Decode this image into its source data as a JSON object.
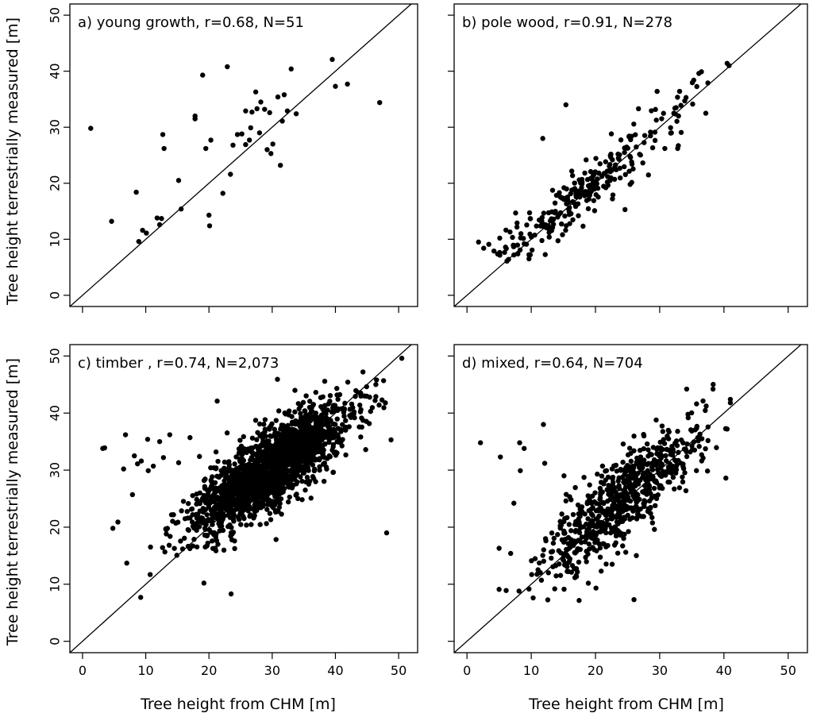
{
  "figure": {
    "ylabel": "Tree height terrestrially measured [m]",
    "xlabel": "Tree height from CHM [m]"
  },
  "chart_data": [
    {
      "type": "scatter",
      "id": "a",
      "title": "a) young growth, r=0.68, N=51",
      "xlabel": "Tree height from CHM [m]",
      "ylabel": "Tree height terrestrially measured [m]",
      "xlim": [
        -2,
        53
      ],
      "ylim": [
        -2,
        52
      ],
      "xticks": [
        0,
        10,
        20,
        30,
        40,
        50
      ],
      "yticks": [
        0,
        10,
        20,
        30,
        40,
        50
      ],
      "reference_line": "1:1",
      "points": [
        [
          1.3,
          29.8
        ],
        [
          4.6,
          13.2
        ],
        [
          8.5,
          18.4
        ],
        [
          8.9,
          9.6
        ],
        [
          9.5,
          11.6
        ],
        [
          10.1,
          11.1
        ],
        [
          11.8,
          13.8
        ],
        [
          12.2,
          12.6
        ],
        [
          12.5,
          13.7
        ],
        [
          12.7,
          28.7
        ],
        [
          12.9,
          26.2
        ],
        [
          15.2,
          20.5
        ],
        [
          15.6,
          15.4
        ],
        [
          17.8,
          32.0
        ],
        [
          17.8,
          31.5
        ],
        [
          19.0,
          39.3
        ],
        [
          19.5,
          26.2
        ],
        [
          20.0,
          14.3
        ],
        [
          20.1,
          12.4
        ],
        [
          20.3,
          27.7
        ],
        [
          22.2,
          18.2
        ],
        [
          22.9,
          40.8
        ],
        [
          23.4,
          21.6
        ],
        [
          23.8,
          26.8
        ],
        [
          24.5,
          28.7
        ],
        [
          25.2,
          28.8
        ],
        [
          25.8,
          26.9
        ],
        [
          25.8,
          32.9
        ],
        [
          26.4,
          27.7
        ],
        [
          26.6,
          29.9
        ],
        [
          26.8,
          32.7
        ],
        [
          27.4,
          36.3
        ],
        [
          27.6,
          33.3
        ],
        [
          28.0,
          29.0
        ],
        [
          28.2,
          34.5
        ],
        [
          28.8,
          33.2
        ],
        [
          29.2,
          26.0
        ],
        [
          29.6,
          32.6
        ],
        [
          29.8,
          25.3
        ],
        [
          30.1,
          27.0
        ],
        [
          30.9,
          35.4
        ],
        [
          31.3,
          23.2
        ],
        [
          31.6,
          31.1
        ],
        [
          31.9,
          35.8
        ],
        [
          32.4,
          32.9
        ],
        [
          33.0,
          40.4
        ],
        [
          33.8,
          32.4
        ],
        [
          39.5,
          42.1
        ],
        [
          40.0,
          37.3
        ],
        [
          41.9,
          37.7
        ],
        [
          47.0,
          34.4
        ]
      ]
    },
    {
      "type": "scatter",
      "id": "b",
      "title": "b) pole wood, r=0.91, N=278",
      "xlabel": "Tree height from CHM [m]",
      "ylabel": "Tree height terrestrially measured [m]",
      "xlim": [
        -2,
        53
      ],
      "ylim": [
        -2,
        52
      ],
      "xticks": [
        0,
        10,
        20,
        30,
        40,
        50
      ],
      "yticks": [
        0,
        10,
        20,
        30,
        40,
        50
      ],
      "reference_line": "1:1",
      "generator": {
        "type": "linear",
        "n": 278,
        "x_range": [
          2,
          41
        ],
        "x_center": 18,
        "x_sd": 7,
        "slope": 1.0,
        "intercept": 0.2,
        "noise_sd": 2.3,
        "seed": 278
      },
      "points": [
        [
          1.8,
          9.5
        ],
        [
          2.6,
          8.4
        ],
        [
          3.4,
          9.1
        ],
        [
          4.2,
          7.9
        ],
        [
          5.1,
          10.2
        ],
        [
          6.0,
          8.6
        ],
        [
          6.7,
          11.3
        ],
        [
          7.3,
          7.2
        ],
        [
          7.8,
          12.9
        ],
        [
          8.4,
          11.0
        ],
        [
          11.8,
          28.0
        ],
        [
          15.4,
          34.0
        ],
        [
          24.6,
          15.3
        ],
        [
          25.4,
          19.8
        ],
        [
          26.7,
          33.3
        ],
        [
          29.6,
          36.4
        ],
        [
          30.8,
          26.2
        ],
        [
          32.2,
          32.5
        ],
        [
          32.8,
          26.2
        ],
        [
          32.9,
          26.7
        ],
        [
          33.1,
          36.4
        ],
        [
          33.3,
          33.9
        ],
        [
          33.9,
          34.7
        ],
        [
          34.1,
          35.3
        ],
        [
          35.3,
          38.4
        ],
        [
          36.1,
          39.6
        ],
        [
          36.5,
          39.9
        ],
        [
          37.5,
          37.9
        ],
        [
          40.5,
          41.4
        ],
        [
          40.8,
          41.0
        ]
      ]
    },
    {
      "type": "scatter",
      "id": "c",
      "title": "c) timber , r=0.74, N=2,073",
      "xlabel": "Tree height from CHM [m]",
      "ylabel": "Tree height terrestrially measured [m]",
      "xlim": [
        -2,
        53
      ],
      "ylim": [
        -2,
        52
      ],
      "xticks": [
        0,
        10,
        20,
        30,
        40,
        50
      ],
      "yticks": [
        0,
        10,
        20,
        30,
        40,
        50
      ],
      "reference_line": "1:1",
      "generator": {
        "type": "linear",
        "n": 2073,
        "x_range": [
          10,
          48
        ],
        "x_center": 30,
        "x_sd": 6,
        "slope": 0.75,
        "intercept": 8,
        "noise_sd": 3.3,
        "seed": 2073
      },
      "points": [
        [
          3.2,
          33.8
        ],
        [
          3.5,
          33.9
        ],
        [
          4.8,
          19.8
        ],
        [
          5.6,
          20.9
        ],
        [
          6.5,
          30.2
        ],
        [
          6.8,
          36.2
        ],
        [
          7.0,
          13.7
        ],
        [
          7.9,
          25.7
        ],
        [
          8.2,
          32.5
        ],
        [
          8.7,
          31.1
        ],
        [
          9.2,
          7.7
        ],
        [
          9.3,
          31.6
        ],
        [
          10.3,
          35.4
        ],
        [
          10.4,
          29.9
        ],
        [
          10.7,
          11.7
        ],
        [
          11.2,
          30.7
        ],
        [
          12.2,
          35.0
        ],
        [
          12.8,
          32.2
        ],
        [
          13.8,
          36.2
        ],
        [
          15.2,
          31.3
        ],
        [
          17.0,
          35.7
        ],
        [
          18.5,
          32.4
        ],
        [
          19.2,
          10.2
        ],
        [
          21.3,
          42.1
        ],
        [
          23.5,
          8.3
        ],
        [
          44.0,
          43.5
        ],
        [
          46.5,
          45.8
        ],
        [
          48.1,
          19.0
        ],
        [
          48.8,
          35.3
        ],
        [
          50.5,
          49.6
        ]
      ]
    },
    {
      "type": "scatter",
      "id": "d",
      "title": "d) mixed, r=0.64, N=704",
      "xlabel": "Tree height from CHM [m]",
      "ylabel": "Tree height terrestrially measured [m]",
      "xlim": [
        -2,
        53
      ],
      "ylim": [
        -2,
        52
      ],
      "xticks": [
        0,
        10,
        20,
        30,
        40,
        50
      ],
      "yticks": [
        0,
        10,
        20,
        30,
        40,
        50
      ],
      "reference_line": "1:1",
      "generator": {
        "type": "linear",
        "n": 704,
        "x_range": [
          7,
          41
        ],
        "x_center": 24,
        "x_sd": 6,
        "slope": 0.95,
        "intercept": 2,
        "noise_sd": 3.6,
        "seed": 704
      },
      "points": [
        [
          2.1,
          34.8
        ],
        [
          5.0,
          16.3
        ],
        [
          5.2,
          32.3
        ],
        [
          5.0,
          9.1
        ],
        [
          6.1,
          8.9
        ],
        [
          6.8,
          15.4
        ],
        [
          7.3,
          24.2
        ],
        [
          8.1,
          8.8
        ],
        [
          8.2,
          34.8
        ],
        [
          8.3,
          29.9
        ],
        [
          8.9,
          33.8
        ],
        [
          10.3,
          7.6
        ],
        [
          11.9,
          38.0
        ],
        [
          12.1,
          31.2
        ],
        [
          15.1,
          29.0
        ],
        [
          15.4,
          24.6
        ],
        [
          22.6,
          13.5
        ],
        [
          26.0,
          7.3
        ],
        [
          34.2,
          44.2
        ],
        [
          38.3,
          44.2
        ],
        [
          40.3,
          28.6
        ],
        [
          40.5,
          37.2
        ],
        [
          41.0,
          42.4
        ],
        [
          41.0,
          41.8
        ]
      ]
    }
  ]
}
